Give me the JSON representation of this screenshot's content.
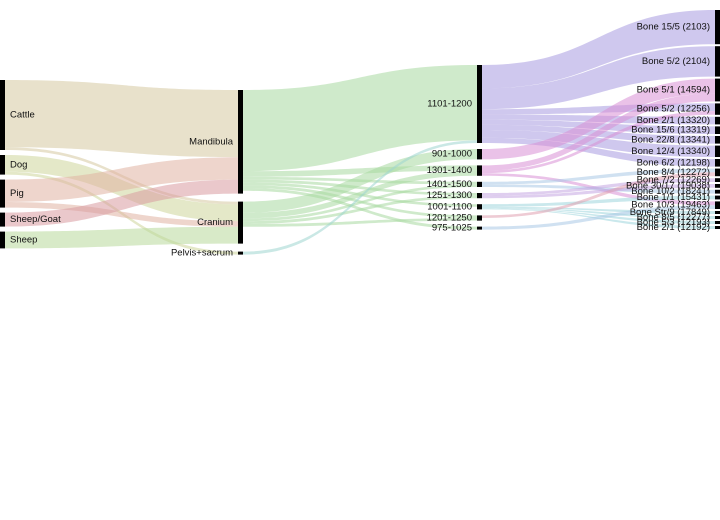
{
  "chart_data": {
    "type": "sankey",
    "title": "",
    "levels": [
      {
        "nodes": [
          "Cattle",
          "Dog",
          "Pig",
          "Sheep/Goat",
          "Sheep"
        ]
      },
      {
        "nodes": [
          "Mandibula",
          "Cranium",
          "Pelvis+sacrum"
        ]
      },
      {
        "nodes": [
          "1101-1200",
          "901-1000",
          "1301-1400",
          "1401-1500",
          "1251-1300",
          "1001-1100",
          "1201-1250",
          "975-1025"
        ]
      },
      {
        "nodes": [
          "Bone 15/5 (2103)",
          "Bone 5/2 (2104)",
          "Bone 5/1 (14594)",
          "Bone 5/2 (12256)",
          "Bone 2/1 (13320)",
          "Bone 15/6 (13319)",
          "Bone 22/8 (13341)",
          "Bone 12/4 (13340)",
          "Bone 6/2 (12198)",
          "Bone 8/4 (12272)",
          "Bone 7/2 (12269)",
          "Bone 30/17 (19038)",
          "Bone 10/2 (18241)",
          "Bone 1/1 (15431)",
          "Bone 10/3 (19463)",
          "Bone Str/9 (17849)",
          "Bone 8/5 (12277)",
          "Bone 5/3 (12193)",
          "Bone 2/1 (12192)"
        ]
      }
    ],
    "flows": [
      {
        "source": "Cattle",
        "target": "Mandibula",
        "value": 24,
        "color": "#d6c9a0"
      },
      {
        "source": "Cattle",
        "target": "Cranium",
        "value": 1,
        "color": "#d6c9a0"
      },
      {
        "source": "Dog",
        "target": "Cranium",
        "value": 6,
        "color": "#cdd59a"
      },
      {
        "source": "Dog",
        "target": "Pelvis+sacrum",
        "value": 1,
        "color": "#cdd59a"
      },
      {
        "source": "Pig",
        "target": "Mandibula",
        "value": 8,
        "color": "#e0b3a3"
      },
      {
        "source": "Pig",
        "target": "Cranium",
        "value": 2,
        "color": "#e0b3a3"
      },
      {
        "source": "Sheep/Goat",
        "target": "Mandibula",
        "value": 5,
        "color": "#d99aa0"
      },
      {
        "source": "Sheep",
        "target": "Cranium",
        "value": 6,
        "color": "#b8d99a"
      },
      {
        "source": "Mandibula",
        "target": "1101-1200",
        "value": 29,
        "color": "#a8d8a0"
      },
      {
        "source": "Mandibula",
        "target": "1301-1400",
        "value": 2,
        "color": "#a8d8a0"
      },
      {
        "source": "Mandibula",
        "target": "1401-1500",
        "value": 1,
        "color": "#a8d8a0"
      },
      {
        "source": "Mandibula",
        "target": "1251-1300",
        "value": 1,
        "color": "#a8d8a0"
      },
      {
        "source": "Mandibula",
        "target": "1001-1100",
        "value": 1,
        "color": "#a8d8a0"
      },
      {
        "source": "Mandibula",
        "target": "1201-1250",
        "value": 1,
        "color": "#a8d8a0"
      },
      {
        "source": "Mandibula",
        "target": "975-1025",
        "value": 1,
        "color": "#a8d8a0"
      },
      {
        "source": "Cranium",
        "target": "901-1000",
        "value": 4,
        "color": "#a8d8a0"
      },
      {
        "source": "Cranium",
        "target": "1301-1400",
        "value": 2,
        "color": "#a8d8a0"
      },
      {
        "source": "Cranium",
        "target": "1401-1500",
        "value": 1,
        "color": "#a8d8a0"
      },
      {
        "source": "Cranium",
        "target": "1251-1300",
        "value": 1,
        "color": "#a8d8a0"
      },
      {
        "source": "Cranium",
        "target": "1201-1250",
        "value": 1,
        "color": "#a8d8a0"
      },
      {
        "source": "Pelvis+sacrum",
        "target": "1101-1200",
        "value": 1,
        "color": "#9fd5cf"
      },
      {
        "source": "1101-1200",
        "target": "Bone 15/5 (2103)",
        "value": 9,
        "color": "#a89be0"
      },
      {
        "source": "1101-1200",
        "target": "Bone 5/2 (2104)",
        "value": 8,
        "color": "#a89be0"
      },
      {
        "source": "1101-1200",
        "target": "Bone 5/2 (12256)",
        "value": 2,
        "color": "#a89be0"
      },
      {
        "source": "1101-1200",
        "target": "Bone 2/1 (13320)",
        "value": 2,
        "color": "#a89be0"
      },
      {
        "source": "1101-1200",
        "target": "Bone 15/6 (13319)",
        "value": 2,
        "color": "#a89be0"
      },
      {
        "source": "1101-1200",
        "target": "Bone 22/8 (13341)",
        "value": 2,
        "color": "#a89be0"
      },
      {
        "source": "1101-1200",
        "target": "Bone 12/4 (13340)",
        "value": 3,
        "color": "#a89be0"
      },
      {
        "source": "1101-1200",
        "target": "Bone 6/2 (12198)",
        "value": 2,
        "color": "#a89be0"
      },
      {
        "source": "901-1000",
        "target": "Bone 5/1 (14594)",
        "value": 4,
        "color": "#d98fd6"
      },
      {
        "source": "1301-1400",
        "target": "Bone 5/1 (14594)",
        "value": 2,
        "color": "#d98fd6"
      },
      {
        "source": "1301-1400",
        "target": "Bone 5/2 (12256)",
        "value": 1,
        "color": "#d98fd6"
      },
      {
        "source": "1301-1400",
        "target": "Bone 10/3 (19463)",
        "value": 1,
        "color": "#d98fd6"
      },
      {
        "source": "1401-1500",
        "target": "Bone 8/4 (12272)",
        "value": 1,
        "color": "#a9c9e6"
      },
      {
        "source": "1401-1500",
        "target": "Bone 10/2 (18241)",
        "value": 1,
        "color": "#a9c9e6"
      },
      {
        "source": "1251-1300",
        "target": "Bone 7/2 (12269)",
        "value": 1,
        "color": "#c4a6e2"
      },
      {
        "source": "1251-1300",
        "target": "Bone 30/17 (19038)",
        "value": 1,
        "color": "#c4a6e2"
      },
      {
        "source": "1001-1100",
        "target": "Bone 1/1 (15431)",
        "value": 1,
        "color": "#9fd5dd"
      },
      {
        "source": "1001-1100",
        "target": "Bone Str/9 (17849)",
        "value": 0.3,
        "color": "#9fd5dd"
      },
      {
        "source": "1001-1100",
        "target": "Bone 8/5 (12277)",
        "value": 0.3,
        "color": "#9fd5dd"
      },
      {
        "source": "1001-1100",
        "target": "Bone 5/3 (12193)",
        "value": 0.2,
        "color": "#9fd5dd"
      },
      {
        "source": "1001-1100",
        "target": "Bone 2/1 (12192)",
        "value": 0.2,
        "color": "#9fd5dd"
      },
      {
        "source": "1201-1250",
        "target": "Bone 8/4 (12272)",
        "value": 1,
        "color": "#e0a0b0"
      },
      {
        "source": "975-1025",
        "target": "Bone 10/3 (19463)",
        "value": 1,
        "color": "#a9c9e6"
      }
    ]
  }
}
